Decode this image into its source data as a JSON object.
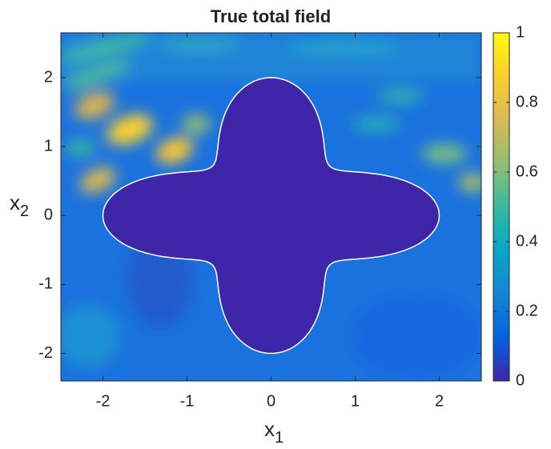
{
  "chart_data": {
    "type": "heatmap",
    "title": "True total field",
    "xlabel": [
      "x",
      "1"
    ],
    "ylabel": [
      "x",
      "2"
    ],
    "xlim": [
      -2.5,
      2.5
    ],
    "xticks": [
      -2,
      -1,
      0,
      1,
      2
    ],
    "ylim": [
      -2.4,
      2.65
    ],
    "yticks": [
      -2,
      -1,
      0,
      1,
      2
    ],
    "clim": [
      0,
      1
    ],
    "cticks": [
      0,
      0.2,
      0.4,
      0.6,
      0.8,
      1
    ],
    "colormap": [
      "#3e26a8",
      "#0363e1",
      "#1485d4",
      "#06a7c6",
      "#38b99e",
      "#92bf73",
      "#d9ba56",
      "#fcce2e",
      "#f9fb0e"
    ]
  }
}
